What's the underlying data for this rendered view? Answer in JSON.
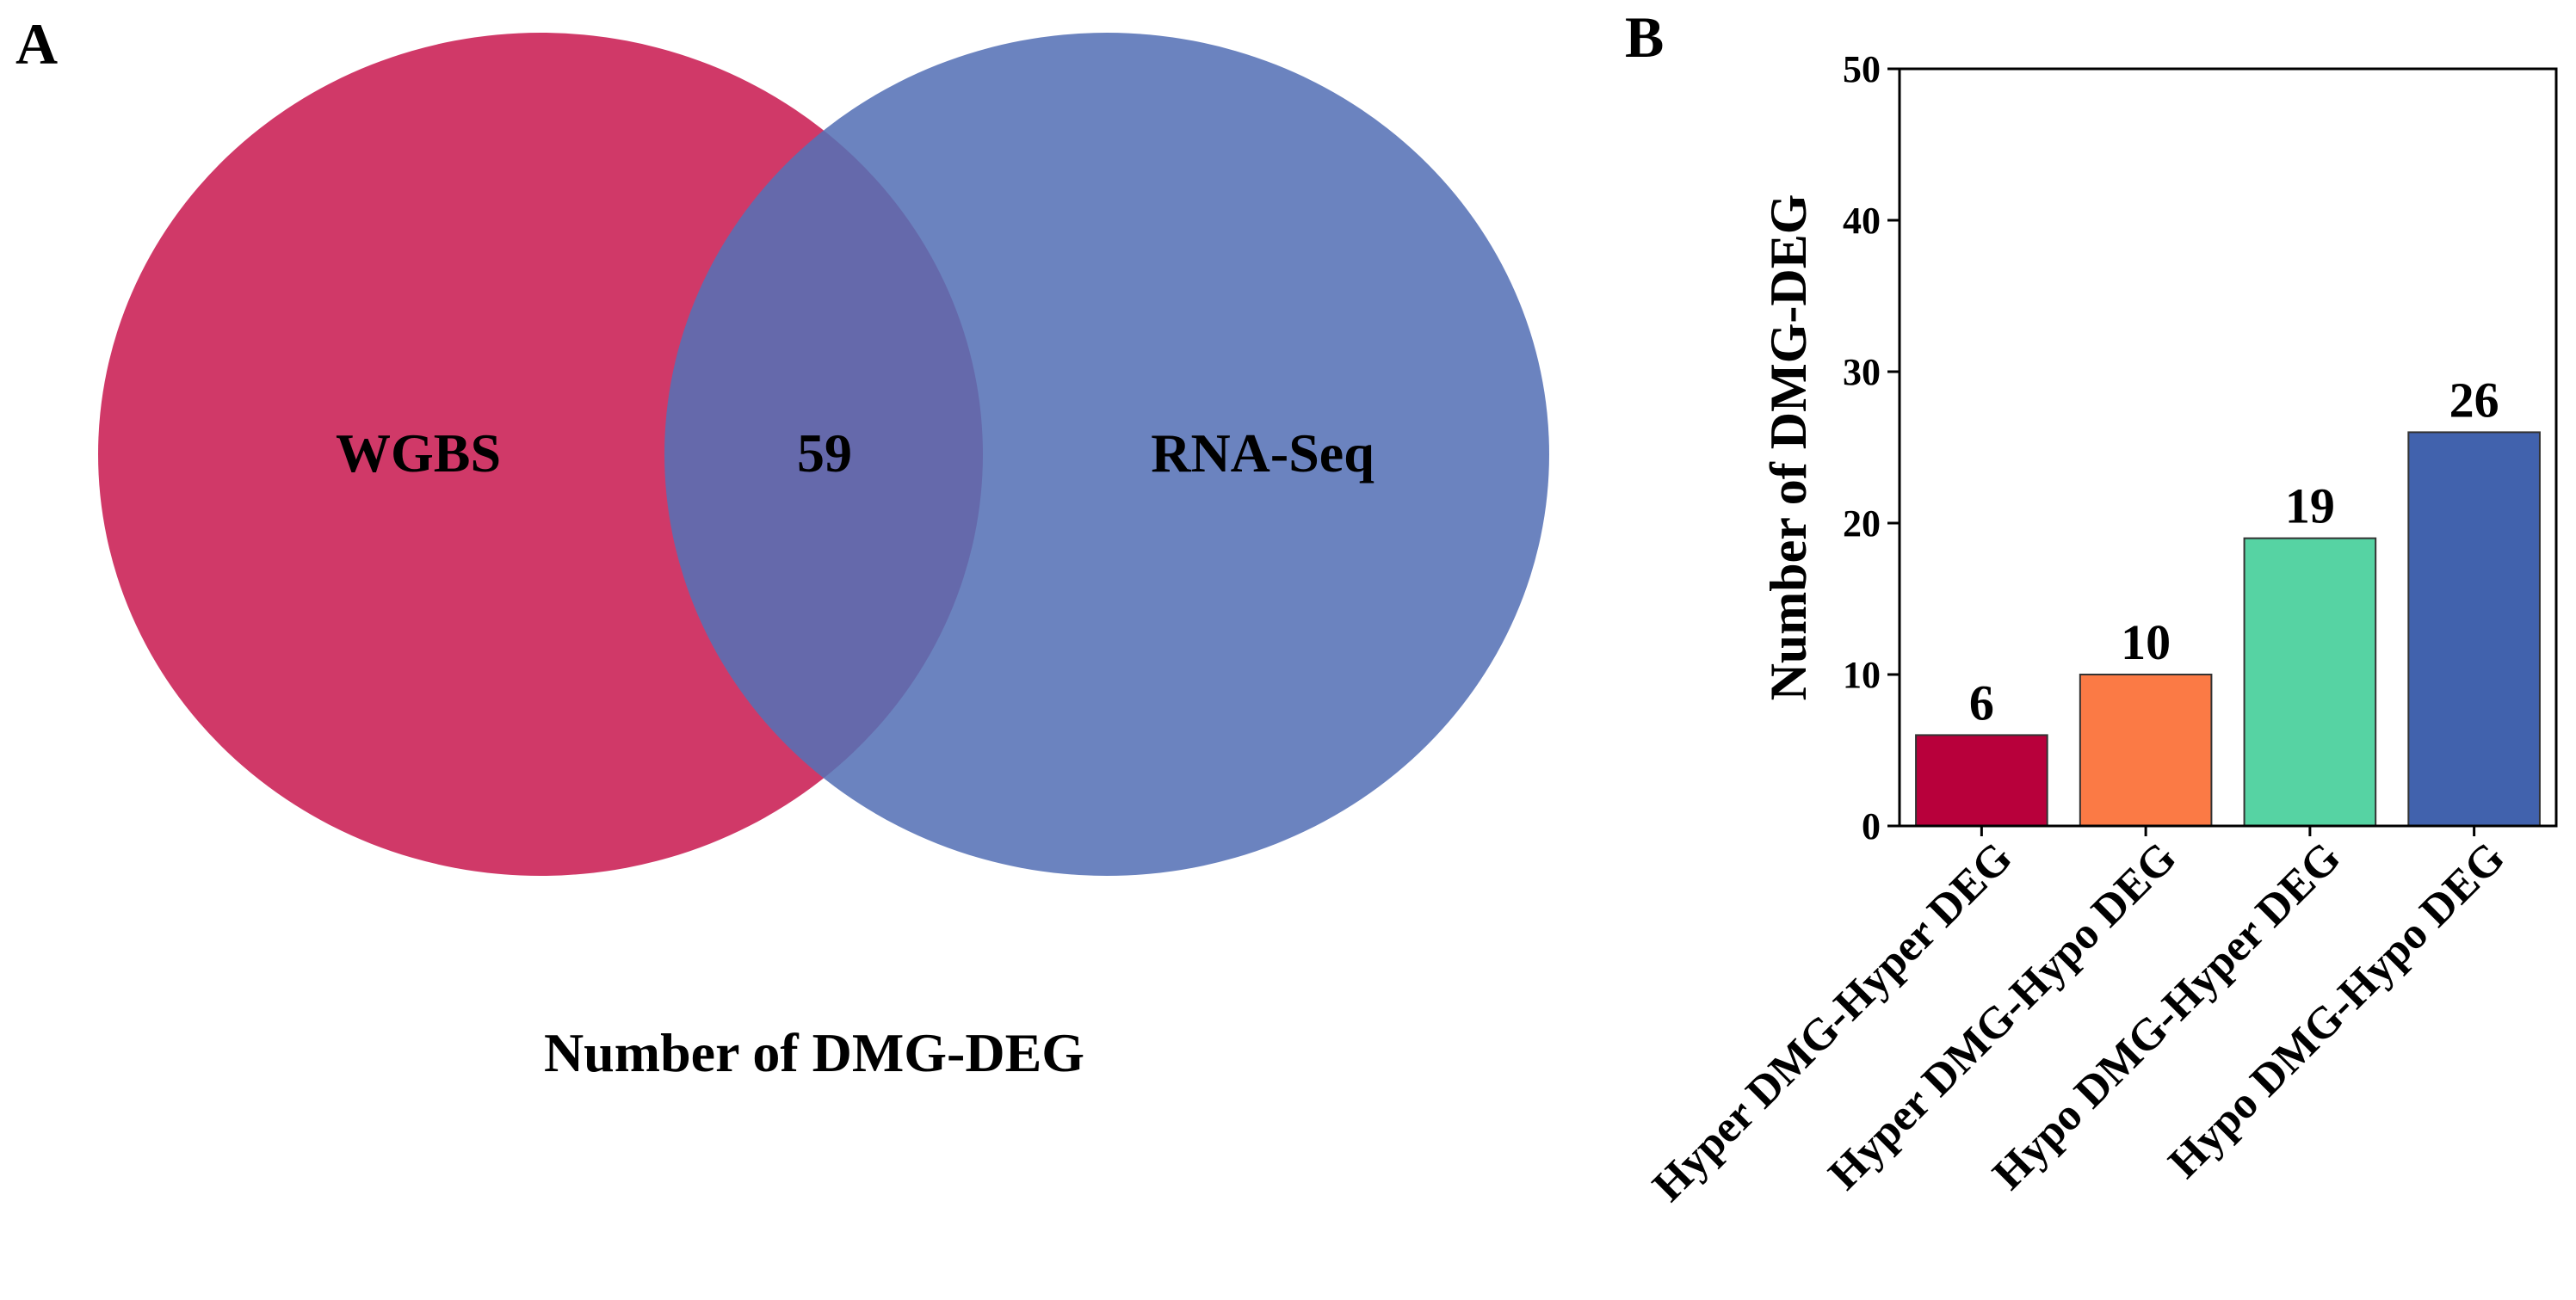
{
  "panels": {
    "a_letter": "A",
    "b_letter": "B"
  },
  "venn": {
    "left_set": "WGBS",
    "right_set": "RNA-Seq",
    "overlap_value": "59",
    "caption": "Number of DMG-DEG",
    "colors": {
      "left": "#cc2a5d",
      "right": "#5570b5"
    }
  },
  "chart_data": {
    "type": "bar",
    "title": "",
    "xlabel": "",
    "ylabel": "Number of DMG-DEG",
    "ylim": [
      0,
      50
    ],
    "yticks": [
      0,
      10,
      20,
      30,
      40,
      50
    ],
    "categories": [
      "Hyper DMG-Hyper DEG",
      "Hyper DMG-Hypo DEG",
      "Hypo DMG-Hyper DEG",
      "Hypo DMG-Hypo DEG"
    ],
    "values": [
      6,
      10,
      19,
      26
    ],
    "colors": [
      "#b8003b",
      "#fb7a45",
      "#56d3a3",
      "#4162ad"
    ],
    "grid": false,
    "data_labels": true
  }
}
